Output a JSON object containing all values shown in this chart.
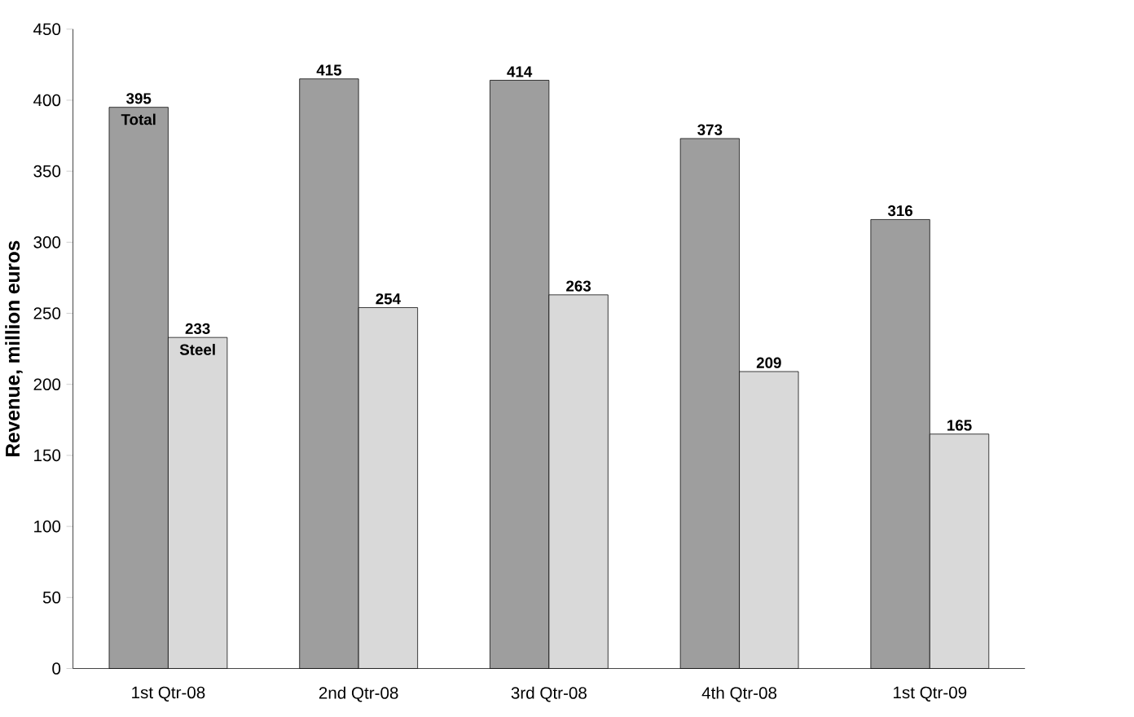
{
  "chart_data": {
    "type": "bar",
    "ylabel": "Revenue, million euros",
    "categories": [
      "1st Qtr-08",
      "2nd Qtr-08",
      "3rd Qtr-08",
      "4th Qtr-08",
      "1st Qtr-09"
    ],
    "series": [
      {
        "name": "Total",
        "color": "#9e9e9e",
        "values": [
          395,
          415,
          414,
          373,
          316
        ]
      },
      {
        "name": "Steel",
        "color": "#d9d9d9",
        "values": [
          233,
          254,
          263,
          209,
          165
        ]
      }
    ],
    "ylim": [
      0,
      450
    ],
    "yticks": [
      0,
      50,
      100,
      150,
      200,
      250,
      300,
      350,
      400,
      450
    ],
    "data_labels": true,
    "grid": false,
    "legend": false
  }
}
